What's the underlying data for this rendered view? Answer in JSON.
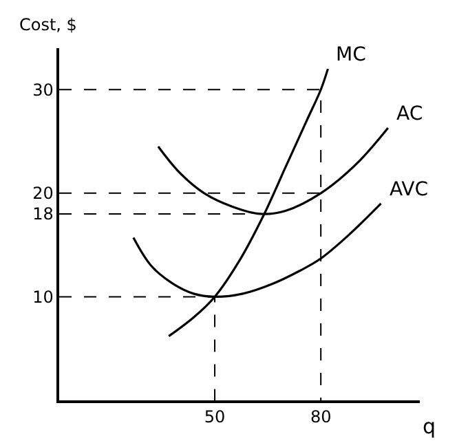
{
  "chart_data": {
    "type": "line",
    "xlabel": "q",
    "ylabel": "Cost, $",
    "xlim": [
      6,
      108
    ],
    "ylim": [
      0,
      34
    ],
    "xticks": [
      50,
      80
    ],
    "yticks": [
      10,
      18,
      20,
      30
    ],
    "legend": false,
    "marker": "none",
    "series": [
      {
        "name": "MC",
        "color": "#000000",
        "x": [
          37,
          44,
          50,
          57,
          64,
          70,
          76,
          80,
          82
        ],
        "values": [
          6.2,
          8,
          10,
          13.5,
          18,
          22.5,
          27,
          30,
          32
        ]
      },
      {
        "name": "AC",
        "color": "#000000",
        "x": [
          34,
          40,
          47,
          55,
          63,
          70,
          80,
          90,
          99
        ],
        "values": [
          24.5,
          22,
          20,
          18.7,
          18,
          18.3,
          20,
          22.8,
          26.3
        ]
      },
      {
        "name": "AVC",
        "color": "#000000",
        "x": [
          27,
          32,
          38,
          44,
          50,
          58,
          66,
          74,
          80,
          88,
          97
        ],
        "values": [
          15.7,
          13,
          11.3,
          10.3,
          10,
          10.3,
          11.2,
          12.5,
          13.7,
          16,
          19
        ]
      },
      {
        "color": "#000000",
        "line_style": "dashed",
        "x": [
          6,
          80,
          80
        ],
        "values": [
          30,
          30,
          0
        ]
      },
      {
        "color": "#000000",
        "line_style": "dashed",
        "x": [
          6,
          80
        ],
        "values": [
          20,
          20
        ]
      },
      {
        "color": "#000000",
        "line_style": "dashed",
        "x": [
          6,
          64
        ],
        "values": [
          18,
          18
        ]
      },
      {
        "color": "#000000",
        "line_style": "dashed",
        "x": [
          6,
          50,
          50
        ],
        "values": [
          10,
          10,
          0
        ]
      }
    ]
  }
}
